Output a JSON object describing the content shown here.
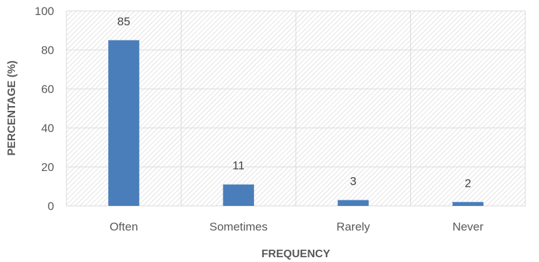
{
  "chart_data": {
    "type": "bar",
    "categories": [
      "Often",
      "Sometimes",
      "Rarely",
      "Never"
    ],
    "values": [
      85,
      11,
      3,
      2
    ],
    "data_labels": [
      "85",
      "11",
      "3",
      "2"
    ],
    "title": "",
    "xlabel": "FREQUENCY",
    "ylabel": "PERCENTAGE (%)",
    "ylim": [
      0,
      100
    ],
    "yticks": [
      0,
      20,
      40,
      60,
      80,
      100
    ],
    "ytick_labels": [
      "0",
      "20",
      "40",
      "60",
      "80",
      "100"
    ],
    "grid": true,
    "plot_area_pattern": "diagonal-hatch",
    "colors": {
      "bar": "#4a7ebb",
      "grid": "#d9d9d9",
      "hatch": "#d0d0d0",
      "text": "#595959"
    }
  }
}
